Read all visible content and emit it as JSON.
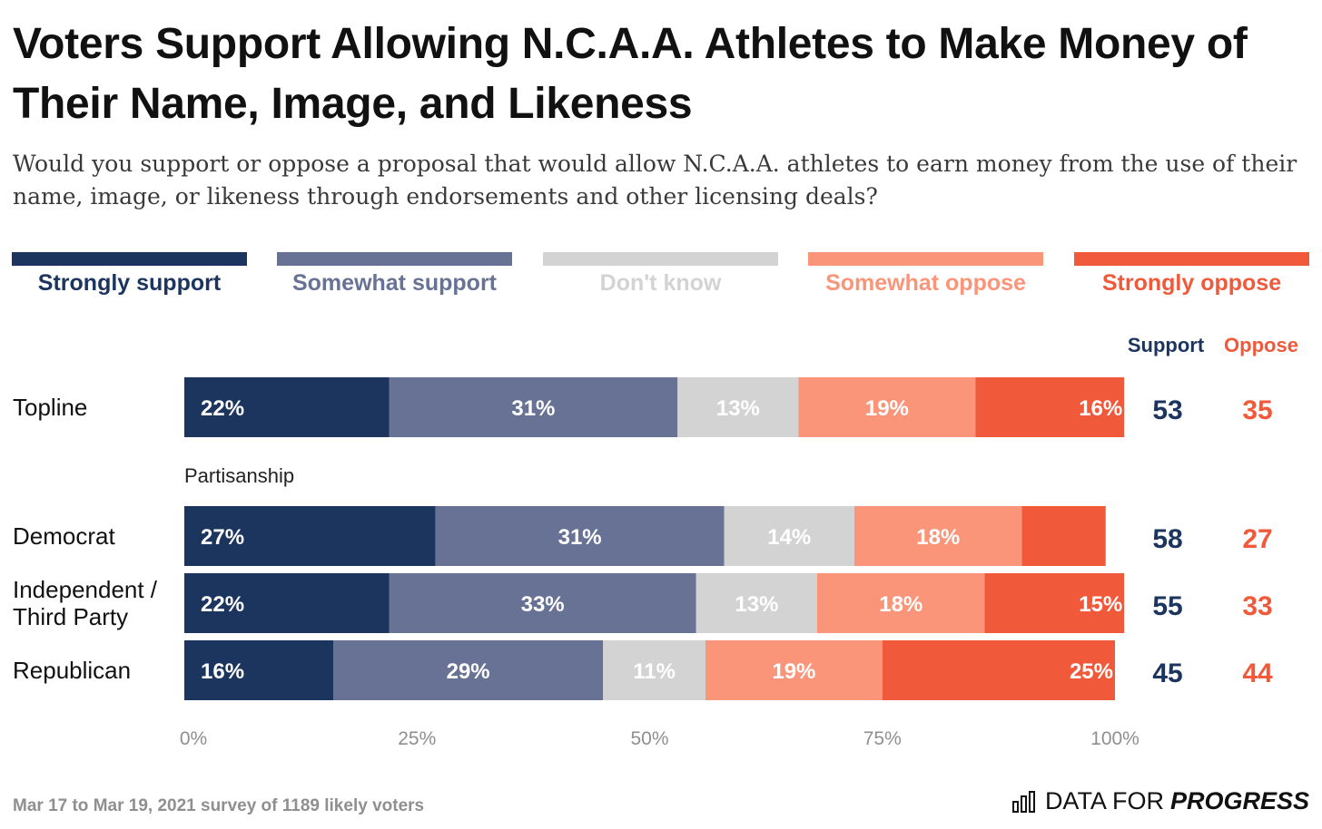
{
  "title": "Voters Support Allowing N.C.A.A. Athletes to Make Money of Their Name, Image, and Likeness",
  "subtitle": "Would you support or oppose a proposal that would allow N.C.A.A. athletes to earn money from the use of their name, image, or likeness through endorsements and other licensing deals?",
  "footnote": "Mar 17 to Mar 19, 2021 survey of 1189 likely voters",
  "brand": {
    "prefix": "DATA FOR",
    "strong": "PROGRESS",
    "icon": "bar-chart-icon"
  },
  "legend": [
    {
      "label": "Strongly support",
      "color": "#1c355e"
    },
    {
      "label": "Somewhat support",
      "color": "#687294"
    },
    {
      "label": "Don't know",
      "color": "#d3d3d3"
    },
    {
      "label": "Somewhat oppose",
      "color": "#fb957a"
    },
    {
      "label": "Strongly oppose",
      "color": "#f05a3b"
    }
  ],
  "chart_data": {
    "type": "bar",
    "orientation": "horizontal",
    "stacked": true,
    "categories": [
      "Topline",
      "Democrat",
      "Independent / Third Party",
      "Republican"
    ],
    "group_label": "Partisanship",
    "series": [
      {
        "name": "Strongly support",
        "color": "#1c355e",
        "values": [
          22,
          27,
          22,
          16
        ],
        "labels": [
          "22%",
          "27%",
          "22%",
          "16%"
        ]
      },
      {
        "name": "Somewhat support",
        "color": "#687294",
        "values": [
          31,
          31,
          33,
          29
        ],
        "labels": [
          "31%",
          "31%",
          "33%",
          "29%"
        ]
      },
      {
        "name": "Don't know",
        "color": "#d3d3d3",
        "values": [
          13,
          14,
          13,
          11
        ],
        "labels": [
          "13%",
          "14%",
          "13%",
          "11%"
        ]
      },
      {
        "name": "Somewhat oppose",
        "color": "#fb957a",
        "values": [
          19,
          18,
          18,
          19
        ],
        "labels": [
          "19%",
          "18%",
          "18%",
          "19%"
        ]
      },
      {
        "name": "Strongly oppose",
        "color": "#f05a3b",
        "values": [
          16,
          9,
          15,
          25
        ],
        "labels": [
          "16%",
          "",
          "15%",
          "25%"
        ]
      }
    ],
    "support_header": "Support",
    "oppose_header": "Oppose",
    "support": [
      53,
      58,
      55,
      45
    ],
    "oppose": [
      35,
      27,
      33,
      44
    ],
    "xticks": [
      "0%",
      "25%",
      "50%",
      "75%",
      "100%"
    ],
    "xlim": [
      0,
      100
    ],
    "colors": {
      "support_text": "#1c355e",
      "oppose_text": "#f05a3b",
      "row_label": "#111111",
      "tick": "#8f8f8f"
    }
  }
}
